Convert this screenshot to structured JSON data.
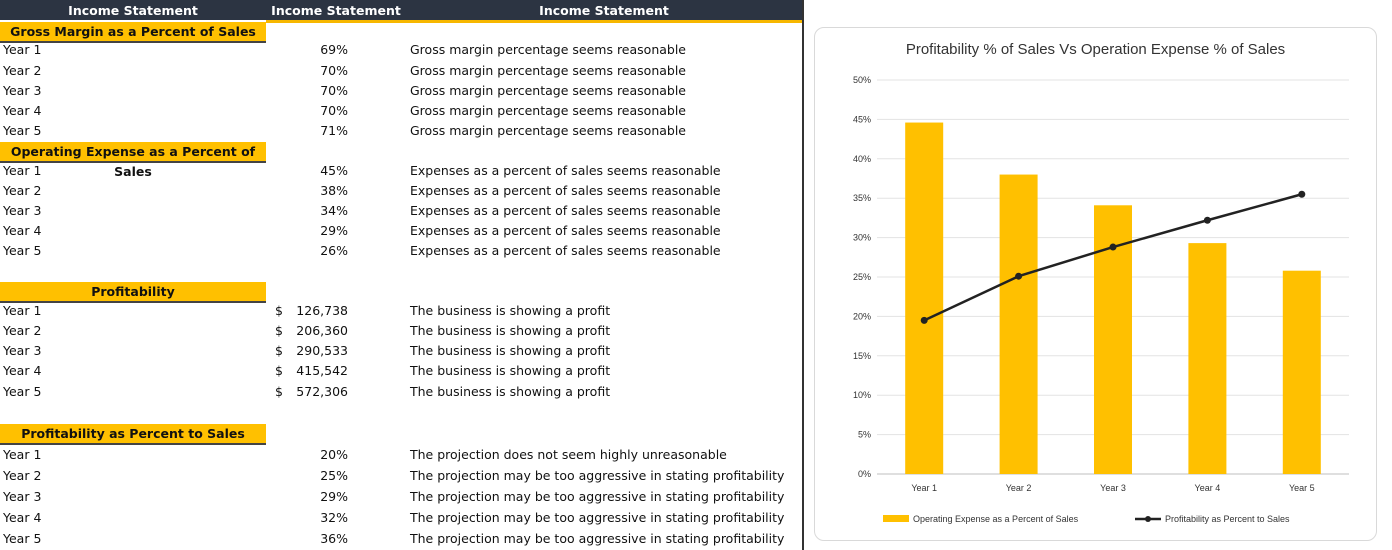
{
  "headers": [
    "Income Statement",
    "Income Statement",
    "Income Statement"
  ],
  "colors": {
    "header_bg": "#2c3442",
    "accent": "#ffc000",
    "line": "#222222"
  },
  "sections": [
    {
      "title": "Gross Margin as a Percent of Sales",
      "rows": [
        {
          "label": "Year 1",
          "value": "69%",
          "comment": "Gross margin percentage seems reasonable"
        },
        {
          "label": "Year 2",
          "value": "70%",
          "comment": "Gross margin percentage seems reasonable"
        },
        {
          "label": "Year 3",
          "value": "70%",
          "comment": "Gross margin percentage seems reasonable"
        },
        {
          "label": "Year 4",
          "value": "70%",
          "comment": "Gross margin percentage seems reasonable"
        },
        {
          "label": "Year 5",
          "value": "71%",
          "comment": "Gross margin percentage seems reasonable"
        }
      ]
    },
    {
      "title": "Operating Expense as a Percent of Sales",
      "rows": [
        {
          "label": "Year 1",
          "value": "45%",
          "comment": "Expenses as a percent of sales seems reasonable"
        },
        {
          "label": "Year 2",
          "value": "38%",
          "comment": "Expenses as a percent of sales seems reasonable"
        },
        {
          "label": "Year 3",
          "value": "34%",
          "comment": "Expenses as a percent of sales seems reasonable"
        },
        {
          "label": "Year 4",
          "value": "29%",
          "comment": "Expenses as a percent of sales seems reasonable"
        },
        {
          "label": "Year 5",
          "value": "26%",
          "comment": "Expenses as a percent of sales seems reasonable"
        }
      ]
    },
    {
      "title": "Profitability",
      "rows": [
        {
          "label": "Year 1",
          "currency": "$",
          "value": "126,738",
          "comment": "The business is showing a profit"
        },
        {
          "label": "Year 2",
          "currency": "$",
          "value": "206,360",
          "comment": "The business is showing a profit"
        },
        {
          "label": "Year 3",
          "currency": "$",
          "value": "290,533",
          "comment": "The business is showing a profit"
        },
        {
          "label": "Year 4",
          "currency": "$",
          "value": "415,542",
          "comment": "The business is showing a profit"
        },
        {
          "label": "Year 5",
          "currency": "$",
          "value": "572,306",
          "comment": "The business is showing a profit"
        }
      ]
    },
    {
      "title": "Profitability as Percent to Sales",
      "rows": [
        {
          "label": "Year 1",
          "value": "20%",
          "comment": "The projection does not seem highly unreasonable"
        },
        {
          "label": "Year 2",
          "value": "25%",
          "comment": "The projection may be too aggressive in stating profitability"
        },
        {
          "label": "Year 3",
          "value": "29%",
          "comment": "The projection may be too aggressive in stating profitability"
        },
        {
          "label": "Year 4",
          "value": "32%",
          "comment": "The projection may be too aggressive in stating profitability"
        },
        {
          "label": "Year 5",
          "value": "36%",
          "comment": "The projection may be too aggressive in stating profitability"
        }
      ]
    }
  ],
  "chart_data": {
    "type": "bar",
    "title": "Profitability % of Sales Vs Operation Expense % of Sales",
    "categories": [
      "Year 1",
      "Year 2",
      "Year 3",
      "Year 4",
      "Year 5"
    ],
    "yticks": [
      "0%",
      "5%",
      "10%",
      "15%",
      "20%",
      "25%",
      "30%",
      "35%",
      "40%",
      "45%",
      "50%"
    ],
    "ylim": [
      0,
      50
    ],
    "grid": true,
    "legend_position": "bottom",
    "series": [
      {
        "name": "Operating Expense as a Percent of Sales",
        "kind": "bar",
        "color": "#ffc000",
        "values": [
          44.6,
          38.0,
          34.1,
          29.3,
          25.8
        ]
      },
      {
        "name": "Profitability as Percent to Sales",
        "kind": "line",
        "color": "#222222",
        "values": [
          19.5,
          25.1,
          28.8,
          32.2,
          35.5
        ]
      }
    ]
  }
}
